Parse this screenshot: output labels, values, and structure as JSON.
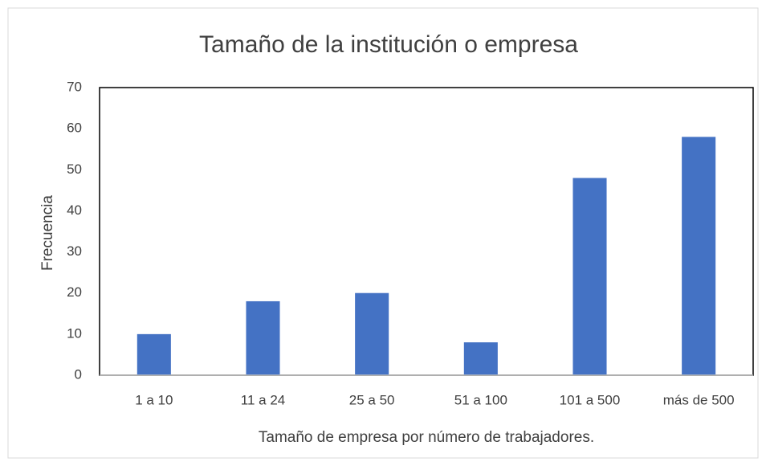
{
  "chart_data": {
    "type": "bar",
    "title": "Tamaño de la institución o empresa",
    "x_label": "Tamaño de empresa por número de trabajadores.",
    "y_label": "Frecuencia",
    "categories": [
      "1 a 10",
      "11 a 24",
      "25 a 50",
      "51 a 100",
      "101 a 500",
      "más de 500"
    ],
    "values": [
      10,
      18,
      20,
      8,
      48,
      58
    ],
    "color": "#4472c4",
    "ylim": [
      0,
      70
    ],
    "yticks": [
      0,
      10,
      20,
      30,
      40,
      50,
      60,
      70
    ],
    "grid": false
  }
}
